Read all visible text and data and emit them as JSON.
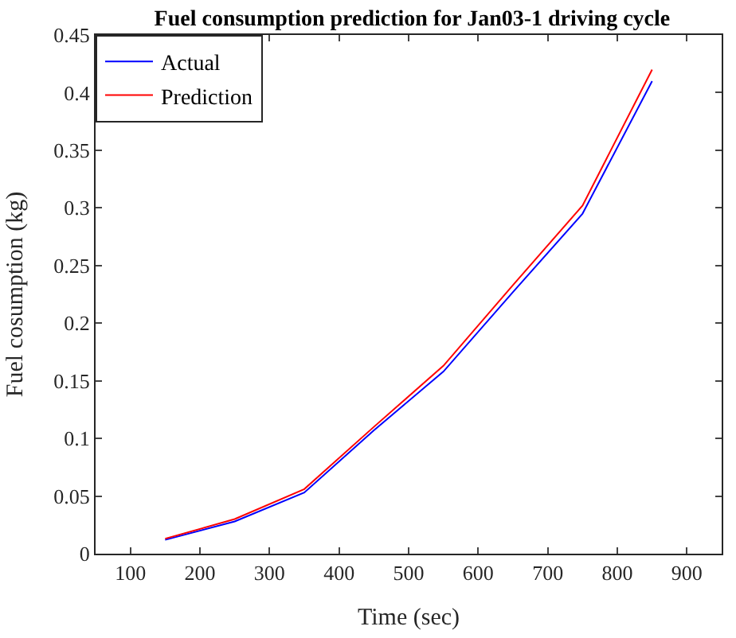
{
  "chart_data": {
    "type": "line",
    "title": "Fuel consumption prediction for Jan03-1 driving cycle",
    "xlabel": "Time (sec)",
    "ylabel": "Fuel cosumption (kg)",
    "x": [
      150,
      250,
      350,
      450,
      550,
      650,
      750,
      850
    ],
    "series": [
      {
        "name": "Actual",
        "color": "#0000ff",
        "values": [
          0.012,
          0.028,
          0.053,
          0.107,
          0.158,
          0.227,
          0.295,
          0.41
        ]
      },
      {
        "name": "Prediction",
        "color": "#ff0000",
        "values": [
          0.013,
          0.03,
          0.056,
          0.11,
          0.163,
          0.233,
          0.302,
          0.42
        ]
      }
    ],
    "xlim": [
      50,
      950
    ],
    "xticks": [
      100,
      200,
      300,
      400,
      500,
      600,
      700,
      800,
      900
    ],
    "ylim": [
      0,
      0.45
    ],
    "yticks": [
      0,
      0.05,
      0.1,
      0.15,
      0.2,
      0.25,
      0.3,
      0.35,
      0.4,
      0.45
    ],
    "legend": "top left",
    "marker": "none",
    "line_style": "solid"
  }
}
